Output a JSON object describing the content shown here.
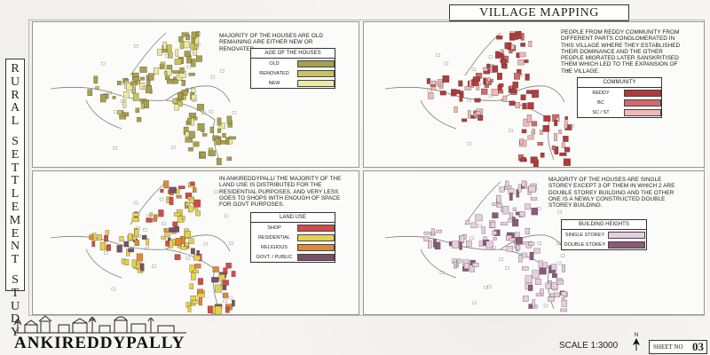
{
  "sheet": {
    "title": "VILLAGE MAPPING",
    "side_title_words": [
      "RURAL",
      "SETTLEMENT",
      "STUDY"
    ],
    "village_name": "ANKIREDDYPALLY",
    "scale": "SCALE 1:3000",
    "north_label": "N",
    "sheet_label": "SHEET NO",
    "sheet_number": "03"
  },
  "panels": [
    {
      "note": "MAJORITY OF THE HOUSES ARE OLD REMAINING ARE EITHER NEW OR RENOVATED",
      "legend_title": "AGE OF THE HOUSES",
      "legend": [
        {
          "label": "OLD",
          "color": "#a9a04a"
        },
        {
          "label": "RENOVATED",
          "color": "#c9c458"
        },
        {
          "label": "NEW",
          "color": "#ecea9e"
        }
      ]
    },
    {
      "note": "PEOPLE FROM REDDY COMMUNITY FROM DIFFERENT PARTS CONGLOMERATED IN THIS VILLAGE WHERE THEY ESTABLISHED THEIR DOMINANCE AND THE OTHER PEOPLE MIGRATED LATER SANSKRITISED THEM WHICH LED TO THE EXPANSION OF THE VILLAGE.",
      "legend_title": "COMMUNITY",
      "legend": [
        {
          "label": "REDDY",
          "color": "#b33a3a"
        },
        {
          "label": "BC",
          "color": "#d26a6a"
        },
        {
          "label": "SC / ST",
          "color": "#f1b7b7"
        }
      ]
    },
    {
      "note": "IN ANKIREDDYPALLI THE MAJORITY OF THE LAND USE IS DISTRIBUTED FOR THE RESIDENTIAL PURPOSES. AND VERY LESS GOES TO SHOPS WITH ENOUGH OF SPACE FOR GOVT PURPOSES.",
      "legend_title": "LAND USE",
      "legend": [
        {
          "label": "SHOP",
          "color": "#d24b4b"
        },
        {
          "label": "RESIDENTIAL",
          "color": "#e6d24a"
        },
        {
          "label": "RELIGIOUS",
          "color": "#e08a33"
        },
        {
          "label": "GOVT. / PUBLIC",
          "color": "#7b5066"
        }
      ]
    },
    {
      "note": "MAJORITY OF THE HOUSES ARE SINGLE STOREY EXCEPT 3 OF THEM IN WHICH 2 ARE DOUBLE STOREY BUILDING AND THE OTHER ONE IS A NEWLY CONSTRUCTED DOUBLE STOREY BUILDING.",
      "legend_title": "BUILDING HEIGHTS",
      "legend": [
        {
          "label": "SINGLE STOREY",
          "color": "#e9cce0"
        },
        {
          "label": "DOUBLE STOREY",
          "color": "#8c5a7a"
        }
      ]
    }
  ]
}
